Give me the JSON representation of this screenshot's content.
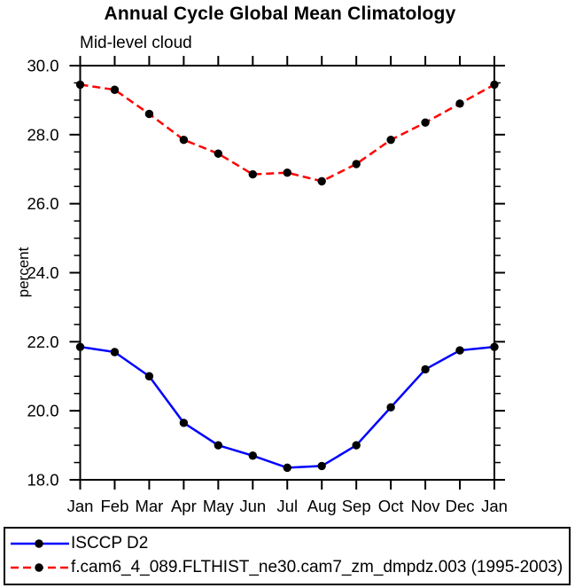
{
  "chart_data": {
    "type": "line",
    "title": "Annual Cycle Global Mean Climatology",
    "subtitle": "Mid-level cloud",
    "xlabel": "",
    "ylabel": "percent",
    "x_categories": [
      "Jan",
      "Feb",
      "Mar",
      "Apr",
      "May",
      "Jun",
      "Jul",
      "Aug",
      "Sep",
      "Oct",
      "Nov",
      "Dec",
      "Jan"
    ],
    "ylim": [
      18.0,
      30.0
    ],
    "ytick_labels": [
      "18.0",
      "20.0",
      "22.0",
      "24.0",
      "26.0",
      "28.0",
      "30.0"
    ],
    "ytick_minor_step": 0.5,
    "grid": false,
    "legend_position": "bottom",
    "marker": {
      "shape": "circle",
      "color": "#000000"
    },
    "series": [
      {
        "name": "ISCCP D2",
        "color": "#0000ff",
        "line_style": "solid",
        "values": [
          21.85,
          21.7,
          21.0,
          19.65,
          19.0,
          18.7,
          18.35,
          18.4,
          19.0,
          20.1,
          21.2,
          21.75,
          21.85
        ]
      },
      {
        "name": "f.cam6_4_089.FLTHIST_ne30.cam7_zm_dmpdz.003 (1995-2003)",
        "color": "#ff0000",
        "line_style": "dashed",
        "values": [
          29.45,
          29.3,
          28.6,
          27.85,
          27.45,
          26.85,
          26.9,
          26.65,
          27.15,
          27.85,
          28.35,
          28.9,
          29.45
        ]
      }
    ]
  }
}
